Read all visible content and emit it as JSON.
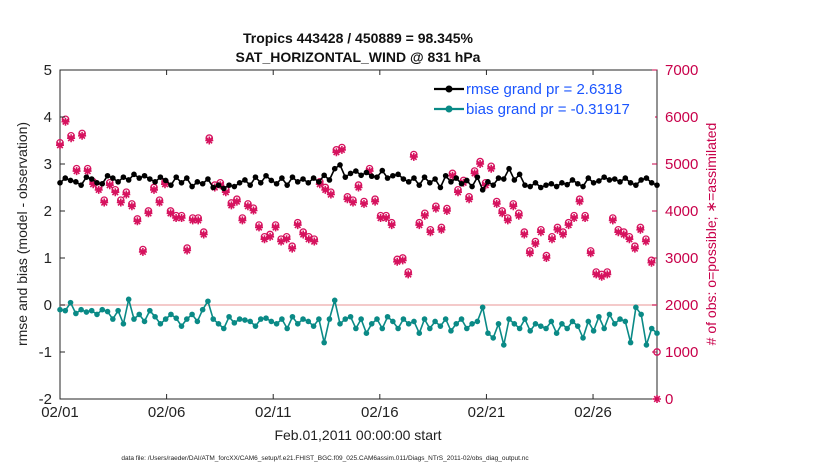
{
  "chart_data": {
    "type": "line",
    "title": "Tropics 443428 / 450889 = 98.345%",
    "subtitle": "SAT_HORIZONTAL_WIND @ 831 hPa",
    "xlabel": "Feb.01,2011 00:00:00 start",
    "ylabel": "rmse and bias (model - observation)",
    "ylabel_right": "# of obs: o=possible; ∗=assimilated",
    "xlim": [
      0,
      28
    ],
    "ylim": [
      -2,
      5
    ],
    "ylim_right": [
      0,
      7000
    ],
    "x_ticks": [
      0,
      5,
      10,
      15,
      20,
      25
    ],
    "x_tick_labels": [
      "02/01",
      "02/06",
      "02/11",
      "02/16",
      "02/21",
      "02/26"
    ],
    "y_ticks": [
      "-2",
      "-1",
      "0",
      "1",
      "2",
      "3",
      "4",
      "5"
    ],
    "y_tick_values": [
      -2,
      -1,
      0,
      1,
      2,
      3,
      4,
      5
    ],
    "y_right_ticks": [
      "0",
      "1000",
      "2000",
      "3000",
      "4000",
      "5000",
      "6000",
      "7000"
    ],
    "y_right_tick_values": [
      0,
      1000,
      2000,
      3000,
      4000,
      5000,
      6000,
      7000
    ],
    "legend": {
      "position": "top-right",
      "rmse_label": "rmse grand pr = 2.6318",
      "bias_label": "bias grand pr = -0.31917"
    },
    "footer": "data file: /Users/raeder/DAI/ATM_forcXX/CAM6_setup/f.e21.FHIST_BGC.f09_025.CAM6assim.011/Diags_NTrS_2011-02/obs_diag_output.nc",
    "colors": {
      "rmse": "#000000",
      "bias": "#0a8a86",
      "obs": "#d6125e",
      "zero_line": "#f0b8b8"
    },
    "series": [
      {
        "name": "rmse",
        "values": [
          2.6,
          2.7,
          2.65,
          2.62,
          2.55,
          2.72,
          2.68,
          2.6,
          2.58,
          2.75,
          2.7,
          2.62,
          2.72,
          2.66,
          2.78,
          2.7,
          2.75,
          2.68,
          2.62,
          2.72,
          2.65,
          2.55,
          2.72,
          2.6,
          2.7,
          2.52,
          2.62,
          2.58,
          2.68,
          2.5,
          2.55,
          2.48,
          2.55,
          2.52,
          2.6,
          2.66,
          2.55,
          2.72,
          2.6,
          2.75,
          2.65,
          2.58,
          2.7,
          2.55,
          2.72,
          2.62,
          2.68,
          2.6,
          2.7,
          2.62,
          2.76,
          2.66,
          2.9,
          2.98,
          2.72,
          2.8,
          2.85,
          2.76,
          2.82,
          2.74,
          2.72,
          2.86,
          2.7,
          2.75,
          2.78,
          2.68,
          2.62,
          2.7,
          2.55,
          2.72,
          2.6,
          2.68,
          2.5,
          2.75,
          2.62,
          2.7,
          2.58,
          2.65,
          2.52,
          2.72,
          2.45,
          2.62,
          2.55,
          2.7,
          2.68,
          2.9,
          2.66,
          2.78,
          2.55,
          2.52,
          2.6,
          2.5,
          2.55,
          2.58,
          2.52,
          2.6,
          2.56,
          2.66,
          2.58,
          2.52,
          2.7,
          2.6,
          2.64,
          2.72,
          2.66,
          2.68,
          2.62,
          2.7,
          2.6,
          2.55,
          2.66,
          2.7,
          2.6,
          2.55
        ]
      },
      {
        "name": "bias",
        "values": [
          -0.1,
          -0.12,
          0.05,
          -0.18,
          -0.1,
          -0.15,
          -0.12,
          -0.2,
          -0.1,
          -0.14,
          -0.3,
          -0.12,
          -0.4,
          0.12,
          -0.3,
          -0.2,
          -0.35,
          -0.12,
          -0.25,
          -0.4,
          -0.3,
          -0.2,
          -0.28,
          -0.45,
          -0.3,
          -0.2,
          -0.35,
          -0.1,
          0.08,
          -0.3,
          -0.4,
          -0.5,
          -0.25,
          -0.38,
          -0.3,
          -0.32,
          -0.35,
          -0.45,
          -0.3,
          -0.28,
          -0.35,
          -0.4,
          -0.3,
          -0.5,
          -0.25,
          -0.4,
          -0.3,
          -0.35,
          -0.45,
          -0.3,
          -0.8,
          -0.3,
          0.1,
          -0.4,
          -0.3,
          -0.25,
          -0.5,
          -0.3,
          -0.6,
          -0.4,
          -0.3,
          -0.5,
          -0.25,
          -0.35,
          -0.5,
          -0.3,
          -0.4,
          -0.35,
          -0.6,
          -0.3,
          -0.5,
          -0.35,
          -0.45,
          -0.3,
          -0.55,
          -0.4,
          -0.3,
          -0.5,
          -0.4,
          -0.35,
          -0.05,
          -0.6,
          -0.7,
          -0.4,
          -0.85,
          -0.3,
          -0.4,
          -0.5,
          -0.3,
          -0.55,
          -0.4,
          -0.45,
          -0.5,
          -0.35,
          -0.6,
          -0.4,
          -0.5,
          -0.35,
          -0.45,
          -0.7,
          -0.35,
          -0.55,
          -0.25,
          -0.5,
          -0.2,
          -0.4,
          -0.3,
          -0.35,
          -0.8,
          -0.05,
          -0.2,
          -0.85,
          -0.5,
          -0.6
        ]
      },
      {
        "name": "obs_possible",
        "values": [
          5450,
          5950,
          5600,
          4900,
          5650,
          4900,
          4620,
          4500,
          4230,
          4600,
          4450,
          4230,
          4400,
          4150,
          3830,
          3180,
          4000,
          4500,
          4230,
          4620,
          4000,
          3900,
          3900,
          3210,
          3850,
          3850,
          3550,
          5550,
          4550,
          4600,
          4450,
          4170,
          4250,
          3850,
          4150,
          4060,
          3700,
          3450,
          3500,
          3700,
          3400,
          3450,
          3250,
          3750,
          3550,
          3450,
          3400,
          4620,
          4500,
          4400,
          5300,
          5350,
          4300,
          4230,
          4550,
          4200,
          4900,
          4250,
          3900,
          3900,
          3750,
          2970,
          3000,
          2700,
          5200,
          3750,
          3950,
          3600,
          4100,
          3650,
          4050,
          4800,
          4450,
          4650,
          4300,
          4850,
          5050,
          4600,
          4950,
          4200,
          4000,
          3850,
          4150,
          3950,
          3550,
          3150,
          3350,
          3600,
          3050,
          3450,
          3650,
          3550,
          3750,
          3900,
          4250,
          3900,
          3150,
          2700,
          2650,
          2700,
          3850,
          3600,
          3550,
          3450,
          3250,
          3650,
          3400,
          2950,
          1000
        ]
      },
      {
        "name": "obs_assimilated",
        "values": [
          5400,
          5900,
          5550,
          4850,
          5600,
          4850,
          4570,
          4450,
          4180,
          4550,
          4400,
          4180,
          4350,
          4100,
          3780,
          3130,
          3950,
          4450,
          4180,
          4570,
          3950,
          3850,
          3850,
          3160,
          3800,
          3800,
          3500,
          5500,
          4500,
          4550,
          4400,
          4120,
          4200,
          3800,
          4100,
          4010,
          3650,
          3400,
          3450,
          3650,
          3350,
          3400,
          3200,
          3700,
          3500,
          3400,
          3350,
          4570,
          4450,
          4350,
          5250,
          5300,
          4250,
          4180,
          4500,
          4150,
          4850,
          4200,
          3850,
          3850,
          3700,
          2920,
          2950,
          2650,
          5150,
          3700,
          3900,
          3550,
          4050,
          3600,
          4000,
          4750,
          4400,
          4600,
          4250,
          4800,
          5000,
          4550,
          4900,
          4150,
          3950,
          3800,
          4100,
          3900,
          3500,
          3100,
          3300,
          3550,
          3000,
          3400,
          3600,
          3500,
          3700,
          3850,
          4200,
          3850,
          3100,
          2650,
          2600,
          2650,
          3800,
          3550,
          3500,
          3400,
          3200,
          3600,
          3350,
          2900,
          0
        ]
      }
    ]
  }
}
